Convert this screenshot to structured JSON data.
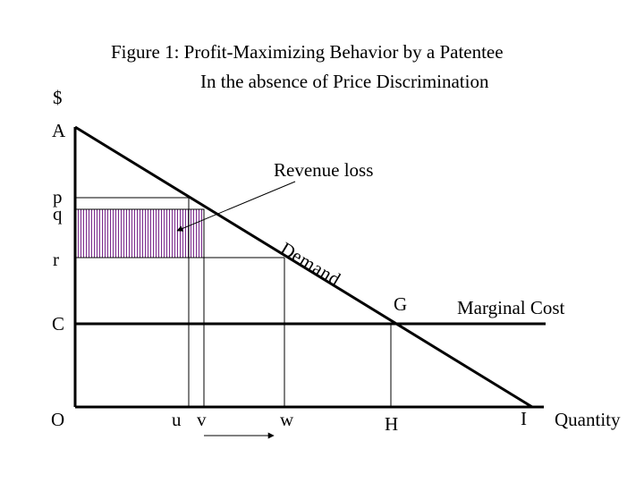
{
  "title_line1": "Figure 1:  Profit-Maximizing Behavior by a Patentee",
  "title_line2": "In the absence of Price Discrimination",
  "y_axis_label": "$",
  "x_axis_label": "Quantity",
  "y_labels": {
    "A": "A",
    "p": "p",
    "q": "q",
    "r": "r",
    "C": "C",
    "O": "O"
  },
  "x_labels": {
    "u": "u",
    "v": "v",
    "w": "w",
    "H": "H",
    "I": "I"
  },
  "point_G": "G",
  "curves": {
    "demand": [
      "D",
      "e",
      "m",
      "a",
      "n",
      "d"
    ],
    "marginal_cost": "Marginal Cost"
  },
  "annotation": {
    "revenue_loss": "Revenue loss"
  },
  "colors": {
    "lines": "#000000",
    "hatch": "#7a2a8c",
    "background": "#ffffff"
  }
}
